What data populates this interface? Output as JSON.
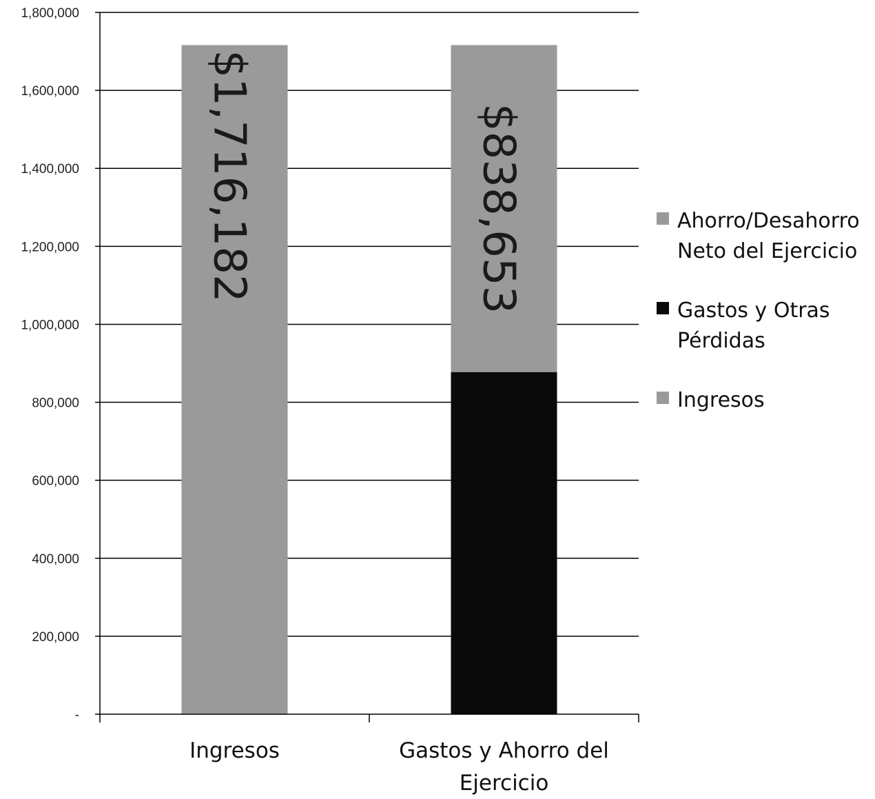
{
  "chart_data": {
    "type": "bar",
    "stacked": true,
    "categories": [
      "Ingresos",
      "Gastos y Ahorro del Ejercicio"
    ],
    "category_lines": [
      [
        "Ingresos"
      ],
      [
        "Gastos y Ahorro del",
        "Ejercicio"
      ]
    ],
    "series": [
      {
        "name": "Ingresos",
        "values": [
          1716182,
          0
        ],
        "color": "#9a9a9a"
      },
      {
        "name": "Gastos y Otras Pérdidas",
        "values": [
          0,
          877529
        ],
        "color": "#0a0a0a"
      },
      {
        "name": "Ahorro/Desahorro Neto del Ejercicio",
        "values": [
          0,
          838653
        ],
        "color": "#9a9a9a"
      }
    ],
    "data_labels": [
      {
        "category_index": 0,
        "series_index": 0,
        "text": "$1,716,182"
      },
      {
        "category_index": 1,
        "series_index": 2,
        "text": "$838,653"
      }
    ],
    "ylim": [
      0,
      1800000
    ],
    "yticks": [
      0,
      200000,
      400000,
      600000,
      800000,
      1000000,
      1200000,
      1400000,
      1600000,
      1800000
    ],
    "ytick_labels": [
      "-",
      "200,000",
      "400,000",
      "600,000",
      "800,000",
      "1,000,000",
      "1,200,000",
      "1,400,000",
      "1,600,000",
      "1,800,000"
    ],
    "legend": {
      "placement": "right",
      "entries": [
        {
          "lines": [
            "Ahorro/Desahorro",
            "Neto del Ejercicio"
          ],
          "color": "#9a9a9a"
        },
        {
          "lines": [
            "Gastos y Otras",
            "Pérdidas"
          ],
          "color": "#0a0a0a"
        },
        {
          "lines": [
            "Ingresos"
          ],
          "color": "#9a9a9a"
        }
      ]
    },
    "grid": true
  }
}
